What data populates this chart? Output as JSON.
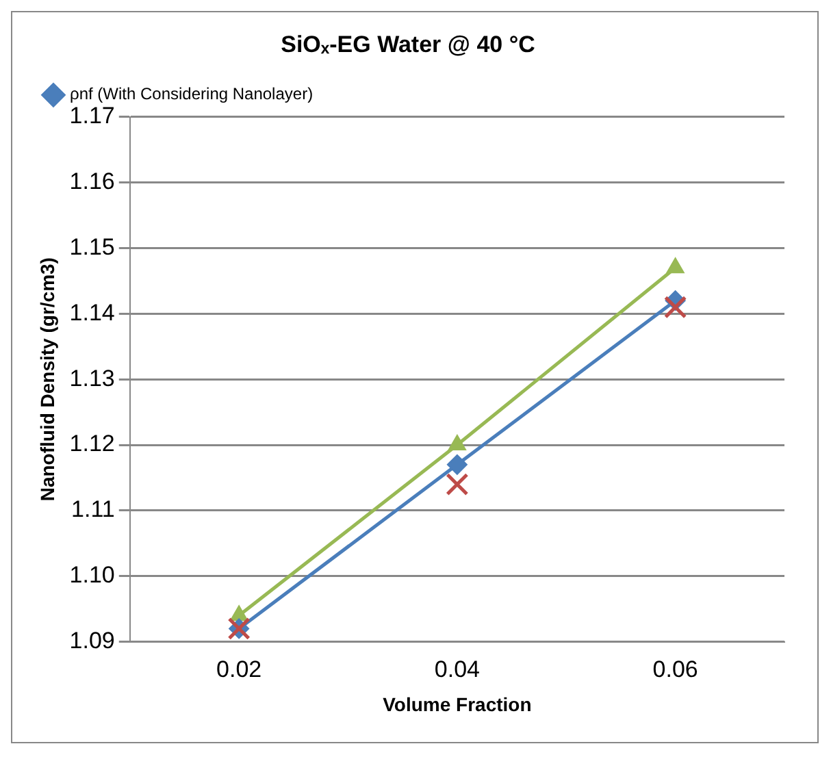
{
  "chart_data": {
    "type": "line",
    "title": "SiOₓ-EG Water @ 40 °C",
    "xlabel": "Volume Fraction",
    "ylabel": "Nanofluid Density (gr/cm3)",
    "categories": [
      "0.02",
      "0.04",
      "0.06"
    ],
    "series": [
      {
        "name": "ρnf (With Considering Nanolayer)",
        "color": "#4a7ebb",
        "values": [
          1.092,
          1.117,
          1.142
        ],
        "marker": "diamond"
      },
      {
        "color": "#98b954",
        "values": [
          1.094,
          1.12,
          1.147
        ],
        "marker": "triangle"
      },
      {
        "type": "scatter",
        "x": [
          "0.02",
          "0.04",
          "0.06"
        ],
        "color": "#be4b48",
        "values": [
          1.092,
          1.114,
          1.141
        ],
        "marker": "cross"
      }
    ],
    "ylim": [
      1.09,
      1.17
    ],
    "yticks": [
      {
        "value": 1.09,
        "label": "1.09"
      },
      {
        "value": 1.1,
        "label": "1.10"
      },
      {
        "value": 1.11,
        "label": "1.11"
      },
      {
        "value": 1.12,
        "label": "1.12"
      },
      {
        "value": 1.13,
        "label": "1.13"
      },
      {
        "value": 1.14,
        "label": "1.14"
      },
      {
        "value": 1.15,
        "label": "1.15"
      },
      {
        "value": 1.16,
        "label": "1.16"
      },
      {
        "value": 1.17,
        "label": "1.17"
      }
    ],
    "grid": "y",
    "legend": "top left"
  }
}
